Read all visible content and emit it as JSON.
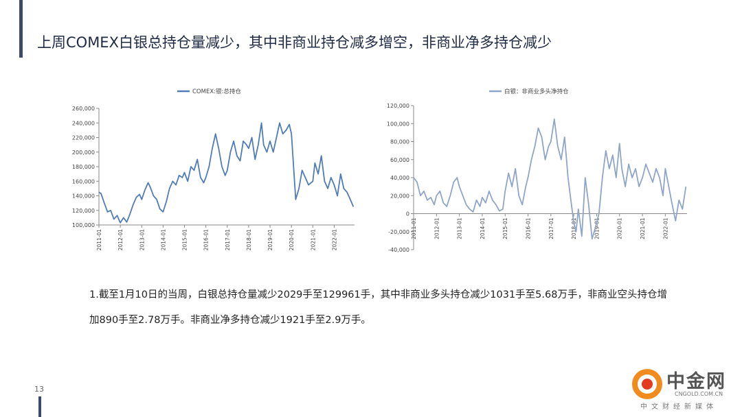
{
  "slide": {
    "title": "上周COMEX白银总持仓量减少，其中非商业持仓减多增空，非商业净多持仓减少",
    "page_number": "13",
    "paragraph_line1": "1.截至1月10日的当周，白银总持仓量减少2029手至129961手，其中非商业多头持仓减少1031手至5.68万手，非商业空头持仓增",
    "paragraph_line2": "加890手至2.78万手。非商业净多持仓减少1921手至2.9万手。",
    "logo": {
      "brand": "中金网",
      "url": "CNGOLD.COM.CN",
      "subtitle": "中文财经新媒体"
    }
  },
  "chart_data": [
    {
      "type": "line",
      "series": [
        {
          "name": "COMEX:银:总持仓",
          "color": "#4f7bb7"
        }
      ],
      "y_ticks": [
        "100,000",
        "120,000",
        "140,000",
        "160,000",
        "180,000",
        "200,000",
        "220,000",
        "240,000",
        "260,000"
      ],
      "x_ticks": [
        "2011-01",
        "2012-01",
        "2013-01",
        "2014-01",
        "2015-01",
        "2016-01",
        "2017-01",
        "2018-01",
        "2019-01",
        "2020-01",
        "2021-01",
        "2022-01"
      ],
      "ylim": [
        100000,
        260000
      ],
      "xlim": [
        2011.0,
        2022.95
      ],
      "points": [
        [
          2011.0,
          145000
        ],
        [
          2011.1,
          143000
        ],
        [
          2011.25,
          130000
        ],
        [
          2011.4,
          118000
        ],
        [
          2011.55,
          120000
        ],
        [
          2011.7,
          108000
        ],
        [
          2011.85,
          113000
        ],
        [
          2012.0,
          103000
        ],
        [
          2012.15,
          110000
        ],
        [
          2012.3,
          104000
        ],
        [
          2012.45,
          115000
        ],
        [
          2012.6,
          128000
        ],
        [
          2012.75,
          138000
        ],
        [
          2012.9,
          142000
        ],
        [
          2013.0,
          135000
        ],
        [
          2013.15,
          148000
        ],
        [
          2013.3,
          158000
        ],
        [
          2013.4,
          152000
        ],
        [
          2013.55,
          140000
        ],
        [
          2013.7,
          135000
        ],
        [
          2013.85,
          122000
        ],
        [
          2014.0,
          118000
        ],
        [
          2014.15,
          132000
        ],
        [
          2014.3,
          150000
        ],
        [
          2014.45,
          160000
        ],
        [
          2014.6,
          155000
        ],
        [
          2014.75,
          168000
        ],
        [
          2014.9,
          165000
        ],
        [
          2015.0,
          172000
        ],
        [
          2015.15,
          160000
        ],
        [
          2015.3,
          180000
        ],
        [
          2015.45,
          175000
        ],
        [
          2015.6,
          190000
        ],
        [
          2015.75,
          165000
        ],
        [
          2015.9,
          158000
        ],
        [
          2016.0,
          165000
        ],
        [
          2016.15,
          180000
        ],
        [
          2016.3,
          205000
        ],
        [
          2016.45,
          225000
        ],
        [
          2016.6,
          205000
        ],
        [
          2016.75,
          180000
        ],
        [
          2016.9,
          168000
        ],
        [
          2017.0,
          175000
        ],
        [
          2017.15,
          200000
        ],
        [
          2017.3,
          215000
        ],
        [
          2017.45,
          195000
        ],
        [
          2017.6,
          188000
        ],
        [
          2017.75,
          215000
        ],
        [
          2017.9,
          210000
        ],
        [
          2018.0,
          205000
        ],
        [
          2018.15,
          220000
        ],
        [
          2018.3,
          190000
        ],
        [
          2018.45,
          210000
        ],
        [
          2018.6,
          240000
        ],
        [
          2018.7,
          210000
        ],
        [
          2018.85,
          200000
        ],
        [
          2019.0,
          215000
        ],
        [
          2019.15,
          200000
        ],
        [
          2019.3,
          220000
        ],
        [
          2019.45,
          240000
        ],
        [
          2019.6,
          225000
        ],
        [
          2019.75,
          230000
        ],
        [
          2019.9,
          238000
        ],
        [
          2020.0,
          225000
        ],
        [
          2020.1,
          180000
        ],
        [
          2020.2,
          135000
        ],
        [
          2020.35,
          150000
        ],
        [
          2020.5,
          175000
        ],
        [
          2020.65,
          165000
        ],
        [
          2020.8,
          155000
        ],
        [
          2021.0,
          160000
        ],
        [
          2021.1,
          185000
        ],
        [
          2021.25,
          170000
        ],
        [
          2021.4,
          195000
        ],
        [
          2021.55,
          160000
        ],
        [
          2021.7,
          150000
        ],
        [
          2021.85,
          165000
        ],
        [
          2022.0,
          155000
        ],
        [
          2022.15,
          140000
        ],
        [
          2022.3,
          170000
        ],
        [
          2022.45,
          150000
        ],
        [
          2022.6,
          145000
        ],
        [
          2022.75,
          135000
        ],
        [
          2022.9,
          125000
        ]
      ]
    },
    {
      "type": "line",
      "series": [
        {
          "name": "白银：非商业多头净持仓",
          "color": "#8fa5c8"
        }
      ],
      "y_ticks": [
        "-40,000",
        "-20,000",
        "0",
        "20,000",
        "40,000",
        "60,000",
        "80,000",
        "100,000",
        "120,000"
      ],
      "x_ticks": [
        "2011-01",
        "2012-01",
        "2013-01",
        "2014-01",
        "2015-01",
        "2016-01",
        "2017-01",
        "2018-01",
        "2019-01",
        "2020-01",
        "2021-01",
        "2022-01"
      ],
      "ylim": [
        -40000,
        120000
      ],
      "xlim": [
        2011.0,
        2022.95
      ],
      "points": [
        [
          2011.0,
          40000
        ],
        [
          2011.15,
          35000
        ],
        [
          2011.3,
          20000
        ],
        [
          2011.45,
          25000
        ],
        [
          2011.6,
          15000
        ],
        [
          2011.75,
          18000
        ],
        [
          2011.9,
          10000
        ],
        [
          2012.0,
          20000
        ],
        [
          2012.15,
          25000
        ],
        [
          2012.3,
          12000
        ],
        [
          2012.45,
          8000
        ],
        [
          2012.6,
          20000
        ],
        [
          2012.75,
          35000
        ],
        [
          2012.9,
          40000
        ],
        [
          2013.0,
          30000
        ],
        [
          2013.15,
          20000
        ],
        [
          2013.3,
          10000
        ],
        [
          2013.45,
          5000
        ],
        [
          2013.6,
          2000
        ],
        [
          2013.75,
          15000
        ],
        [
          2013.9,
          8000
        ],
        [
          2014.0,
          18000
        ],
        [
          2014.15,
          12000
        ],
        [
          2014.3,
          25000
        ],
        [
          2014.45,
          15000
        ],
        [
          2014.6,
          10000
        ],
        [
          2014.75,
          3000
        ],
        [
          2014.9,
          5000
        ],
        [
          2015.0,
          25000
        ],
        [
          2015.15,
          45000
        ],
        [
          2015.3,
          30000
        ],
        [
          2015.45,
          50000
        ],
        [
          2015.6,
          20000
        ],
        [
          2015.75,
          10000
        ],
        [
          2015.9,
          30000
        ],
        [
          2016.0,
          40000
        ],
        [
          2016.15,
          60000
        ],
        [
          2016.3,
          75000
        ],
        [
          2016.45,
          95000
        ],
        [
          2016.6,
          85000
        ],
        [
          2016.75,
          60000
        ],
        [
          2016.9,
          75000
        ],
        [
          2017.0,
          80000
        ],
        [
          2017.15,
          105000
        ],
        [
          2017.3,
          75000
        ],
        [
          2017.45,
          60000
        ],
        [
          2017.6,
          85000
        ],
        [
          2017.75,
          40000
        ],
        [
          2017.85,
          20000
        ],
        [
          2018.0,
          -10000
        ],
        [
          2018.1,
          -20000
        ],
        [
          2018.2,
          5000
        ],
        [
          2018.35,
          -25000
        ],
        [
          2018.5,
          40000
        ],
        [
          2018.65,
          10000
        ],
        [
          2018.8,
          -28000
        ],
        [
          2018.95,
          -15000
        ],
        [
          2019.1,
          0
        ],
        [
          2019.25,
          40000
        ],
        [
          2019.4,
          70000
        ],
        [
          2019.55,
          50000
        ],
        [
          2019.7,
          65000
        ],
        [
          2019.85,
          40000
        ],
        [
          2020.0,
          78000
        ],
        [
          2020.1,
          50000
        ],
        [
          2020.25,
          30000
        ],
        [
          2020.4,
          55000
        ],
        [
          2020.55,
          40000
        ],
        [
          2020.7,
          50000
        ],
        [
          2020.85,
          30000
        ],
        [
          2021.0,
          40000
        ],
        [
          2021.15,
          55000
        ],
        [
          2021.3,
          45000
        ],
        [
          2021.45,
          35000
        ],
        [
          2021.6,
          50000
        ],
        [
          2021.75,
          40000
        ],
        [
          2021.9,
          20000
        ],
        [
          2022.0,
          50000
        ],
        [
          2022.15,
          30000
        ],
        [
          2022.3,
          10000
        ],
        [
          2022.45,
          -8000
        ],
        [
          2022.6,
          15000
        ],
        [
          2022.75,
          5000
        ],
        [
          2022.9,
          30000
        ]
      ]
    }
  ]
}
